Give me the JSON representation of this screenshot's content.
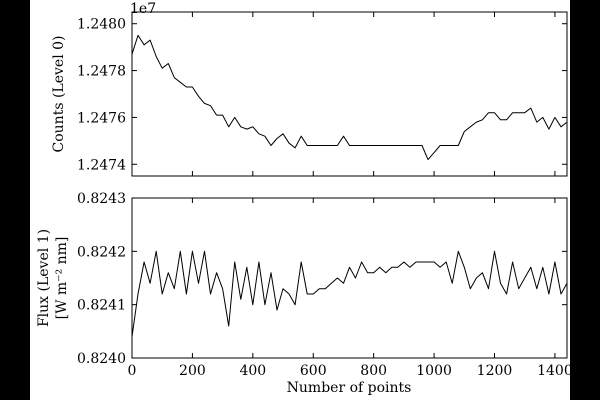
{
  "chart_data": [
    {
      "type": "line",
      "ylabel": "Counts (Level 0)",
      "offset_text": "1e7",
      "xlim": [
        0,
        1440
      ],
      "ylim": [
        1.24735,
        1.24805
      ],
      "xticks": [
        0,
        200,
        400,
        600,
        800,
        1000,
        1200,
        1400
      ],
      "xtick_labels": [],
      "yticks": [
        1.2474,
        1.2476,
        1.2478,
        1.248
      ],
      "ytick_labels": [
        "1.2474",
        "1.2476",
        "1.2478",
        "1.2480"
      ],
      "series": [
        {
          "x": [
            0,
            20,
            40,
            60,
            80,
            100,
            120,
            140,
            160,
            180,
            200,
            220,
            240,
            260,
            280,
            300,
            320,
            340,
            360,
            380,
            400,
            420,
            440,
            460,
            480,
            500,
            520,
            540,
            560,
            580,
            600,
            620,
            640,
            660,
            680,
            700,
            720,
            740,
            760,
            780,
            800,
            820,
            840,
            860,
            880,
            900,
            920,
            940,
            960,
            980,
            1000,
            1020,
            1040,
            1060,
            1080,
            1100,
            1120,
            1140,
            1160,
            1180,
            1200,
            1220,
            1240,
            1260,
            1280,
            1300,
            1320,
            1340,
            1360,
            1380,
            1400,
            1420,
            1440
          ],
          "y": [
            1.24787,
            1.24795,
            1.24791,
            1.24793,
            1.24786,
            1.24781,
            1.24783,
            1.24777,
            1.24775,
            1.24773,
            1.24773,
            1.24769,
            1.24766,
            1.24765,
            1.24761,
            1.24761,
            1.24756,
            1.2476,
            1.24756,
            1.24755,
            1.24756,
            1.24753,
            1.24752,
            1.24748,
            1.24751,
            1.24753,
            1.24749,
            1.24747,
            1.24752,
            1.24748,
            1.24748,
            1.24748,
            1.24748,
            1.24748,
            1.24748,
            1.24752,
            1.24748,
            1.24748,
            1.24748,
            1.24748,
            1.24748,
            1.24748,
            1.24748,
            1.24748,
            1.24748,
            1.24748,
            1.24748,
            1.24748,
            1.24748,
            1.24742,
            1.24745,
            1.24748,
            1.24748,
            1.24748,
            1.24748,
            1.24754,
            1.24756,
            1.24758,
            1.24759,
            1.24762,
            1.24762,
            1.24759,
            1.24759,
            1.24762,
            1.24762,
            1.24762,
            1.24764,
            1.24758,
            1.2476,
            1.24755,
            1.2476,
            1.24756,
            1.24758
          ]
        }
      ]
    },
    {
      "type": "line",
      "xlabel": "Number of points",
      "ylabel": "Flux (Level 1)",
      "ylabel_line2": "[W m⁻² nm]",
      "xlim": [
        0,
        1440
      ],
      "ylim": [
        0.824,
        0.8243
      ],
      "xticks": [
        0,
        200,
        400,
        600,
        800,
        1000,
        1200,
        1400
      ],
      "xtick_labels": [
        "0",
        "200",
        "400",
        "600",
        "800",
        "1000",
        "1200",
        "1400"
      ],
      "yticks": [
        0.824,
        0.8241,
        0.8242,
        0.8243
      ],
      "ytick_labels": [
        "0.8240",
        "0.8241",
        "0.8242",
        "0.8243"
      ],
      "series": [
        {
          "x": [
            0,
            20,
            40,
            60,
            80,
            100,
            120,
            140,
            160,
            180,
            200,
            220,
            240,
            260,
            280,
            300,
            320,
            340,
            360,
            380,
            400,
            420,
            440,
            460,
            480,
            500,
            520,
            540,
            560,
            580,
            600,
            620,
            640,
            660,
            680,
            700,
            720,
            740,
            760,
            780,
            800,
            820,
            840,
            860,
            880,
            900,
            920,
            940,
            960,
            980,
            1000,
            1020,
            1040,
            1060,
            1080,
            1100,
            1120,
            1140,
            1160,
            1180,
            1200,
            1220,
            1240,
            1260,
            1280,
            1300,
            1320,
            1340,
            1360,
            1380,
            1400,
            1420,
            1440
          ],
          "y": [
            0.82404,
            0.82412,
            0.82418,
            0.82414,
            0.8242,
            0.82412,
            0.82416,
            0.82413,
            0.8242,
            0.82412,
            0.8242,
            0.82414,
            0.8242,
            0.82412,
            0.82416,
            0.82413,
            0.82406,
            0.82418,
            0.82411,
            0.82417,
            0.8241,
            0.82418,
            0.8241,
            0.82416,
            0.82409,
            0.82413,
            0.82412,
            0.8241,
            0.82418,
            0.82412,
            0.82412,
            0.82413,
            0.82413,
            0.82414,
            0.82415,
            0.82414,
            0.82417,
            0.82415,
            0.82418,
            0.82416,
            0.82416,
            0.82417,
            0.82416,
            0.82417,
            0.82417,
            0.82418,
            0.82417,
            0.82418,
            0.82418,
            0.82418,
            0.82418,
            0.82417,
            0.82418,
            0.82414,
            0.8242,
            0.82417,
            0.82413,
            0.82415,
            0.82416,
            0.82413,
            0.8242,
            0.82414,
            0.82412,
            0.82418,
            0.82413,
            0.82415,
            0.82417,
            0.82413,
            0.82417,
            0.82412,
            0.82418,
            0.82412,
            0.82414
          ]
        }
      ]
    }
  ]
}
